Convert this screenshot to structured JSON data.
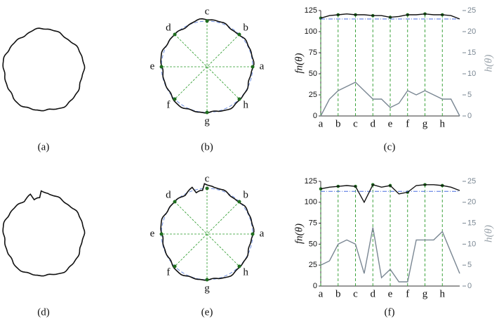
{
  "captions": [
    "(a)",
    "(b)",
    "(c)",
    "(d)",
    "(e)",
    "(f)"
  ],
  "circle_labels": [
    "a",
    "b",
    "c",
    "d",
    "e",
    "f",
    "g",
    "h"
  ],
  "chart_data": [
    {
      "type": "line",
      "ylabel": "fn(θ)",
      "y2label": "h(θ)",
      "xlim": [
        0,
        8
      ],
      "ylim": [
        0,
        125
      ],
      "yticks": [
        0,
        25,
        50,
        75,
        100,
        125
      ],
      "y2lim": [
        0,
        25
      ],
      "y2ticks": [
        0,
        5,
        10,
        15,
        20,
        25
      ],
      "xticks": [
        {
          "value": 0,
          "label": "a"
        },
        {
          "value": 1,
          "label": "b"
        },
        {
          "value": 2,
          "label": "c"
        },
        {
          "value": 3,
          "label": "d"
        },
        {
          "value": 4,
          "label": "e"
        },
        {
          "value": 5,
          "label": "f"
        },
        {
          "value": 6,
          "label": "g"
        },
        {
          "value": 7,
          "label": "h"
        }
      ],
      "reference": 115,
      "x": [
        0,
        0.5,
        1,
        1.5,
        2,
        2.5,
        3,
        3.5,
        4,
        4.5,
        5,
        5.5,
        6,
        6.5,
        7,
        7.5,
        8
      ],
      "series": [
        {
          "color": "#111111",
          "values": [
            116,
            119,
            120,
            121,
            120,
            120,
            119,
            119,
            117,
            118,
            120,
            120,
            121,
            120,
            120,
            119,
            115
          ]
        },
        {
          "color": "#7a8793",
          "axis": "y2",
          "values": [
            0,
            4,
            6,
            7,
            8,
            6,
            4,
            4,
            2,
            3,
            6,
            5,
            6,
            5,
            4,
            4,
            0
          ]
        }
      ]
    },
    {
      "type": "line",
      "ylabel": "fn(θ)",
      "y2label": "h(θ)",
      "xlim": [
        0,
        8
      ],
      "ylim": [
        0,
        125
      ],
      "yticks": [
        0,
        25,
        50,
        75,
        100,
        125
      ],
      "y2lim": [
        0,
        25
      ],
      "y2ticks": [
        0,
        5,
        10,
        15,
        20,
        25
      ],
      "xticks": [
        {
          "value": 0,
          "label": "a"
        },
        {
          "value": 1,
          "label": "b"
        },
        {
          "value": 2,
          "label": "c"
        },
        {
          "value": 3,
          "label": "d"
        },
        {
          "value": 4,
          "label": "e"
        },
        {
          "value": 5,
          "label": "f"
        },
        {
          "value": 6,
          "label": "g"
        },
        {
          "value": 7,
          "label": "h"
        }
      ],
      "reference": 113,
      "x": [
        0,
        0.5,
        1,
        1.5,
        2,
        2.5,
        3,
        3.5,
        4,
        4.5,
        5,
        5.5,
        6,
        6.5,
        7,
        7.5,
        8
      ],
      "series": [
        {
          "color": "#111111",
          "values": [
            116,
            118,
            119,
            120,
            119,
            100,
            121,
            118,
            120,
            110,
            112,
            120,
            121,
            121,
            120,
            118,
            114
          ]
        },
        {
          "color": "#7a8793",
          "axis": "y2",
          "values": [
            5,
            6,
            10,
            11,
            10,
            3,
            14,
            2,
            4,
            1,
            1,
            11,
            11,
            11,
            13,
            8,
            3
          ]
        }
      ]
    }
  ]
}
